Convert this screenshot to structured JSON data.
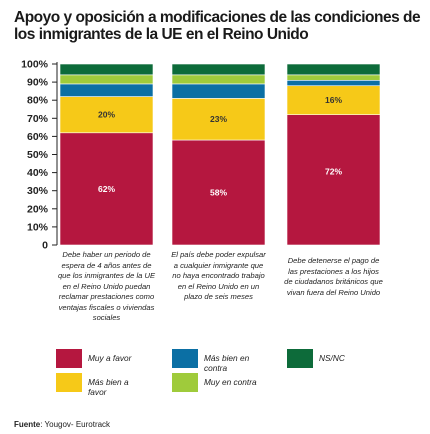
{
  "title": "Apoyo y oposición a modificaciones de las condiciones de los inmigrantes de la UE en el Reino Unido",
  "source": {
    "label": "Fuente",
    "text": ": Yougov- Eurotrack"
  },
  "colors": {
    "muy_a_favor": "#b5173f",
    "mas_bien_a_favor": "#f6c918",
    "mas_bien_en_contra": "#0b6fa4",
    "muy_en_contra": "#9fcb3b",
    "ns_nc": "#0d6b3a"
  },
  "chart_data": {
    "type": "bar",
    "stacked": true,
    "ylim": [
      0,
      100
    ],
    "yticks": [
      "0",
      "10%",
      "20%",
      "30%",
      "40%",
      "50%",
      "60%",
      "70%",
      "80%",
      "90%",
      "100%"
    ],
    "categories": [
      "Debe haber un periodo de espera de 4 años antes de que los inmigrantes de la UE en el Reino Unido puedan reclamar prestaciones como ventajas fiscales o viviendas sociales",
      "El país debe poder expulsar a cualquier inmigrante que no haya encontrado trabajo en el Reino Unido en un plazo de seis meses",
      "Debe detenerse el pago de las prestaciones a los hijos de ciudadanos británicos que vivan fuera del Reino Unido"
    ],
    "series": [
      {
        "name": "Muy a favor",
        "key": "muy_a_favor",
        "values": [
          62,
          58,
          72
        ],
        "labels": [
          "62%",
          "58%",
          "72%"
        ]
      },
      {
        "name": "Más bien a favor",
        "key": "mas_bien_a_favor",
        "values": [
          20,
          23,
          16
        ],
        "labels": [
          "20%",
          "23%",
          "16%"
        ]
      },
      {
        "name": "Más bien en contra",
        "key": "mas_bien_en_contra",
        "values": [
          7,
          8,
          3
        ],
        "labels": [
          "",
          "",
          ""
        ]
      },
      {
        "name": "Muy en contra",
        "key": "muy_en_contra",
        "values": [
          5,
          5,
          3
        ],
        "labels": [
          "",
          "",
          ""
        ]
      },
      {
        "name": "NS/NC",
        "key": "ns_nc",
        "values": [
          6,
          6,
          6
        ],
        "labels": [
          "",
          "",
          ""
        ]
      }
    ],
    "legend": [
      "Muy a favor",
      "Más bien a favor",
      "Más bien en contra",
      "Muy en contra",
      "NS/NC"
    ],
    "grid": false,
    "legend_position": "bottom"
  }
}
